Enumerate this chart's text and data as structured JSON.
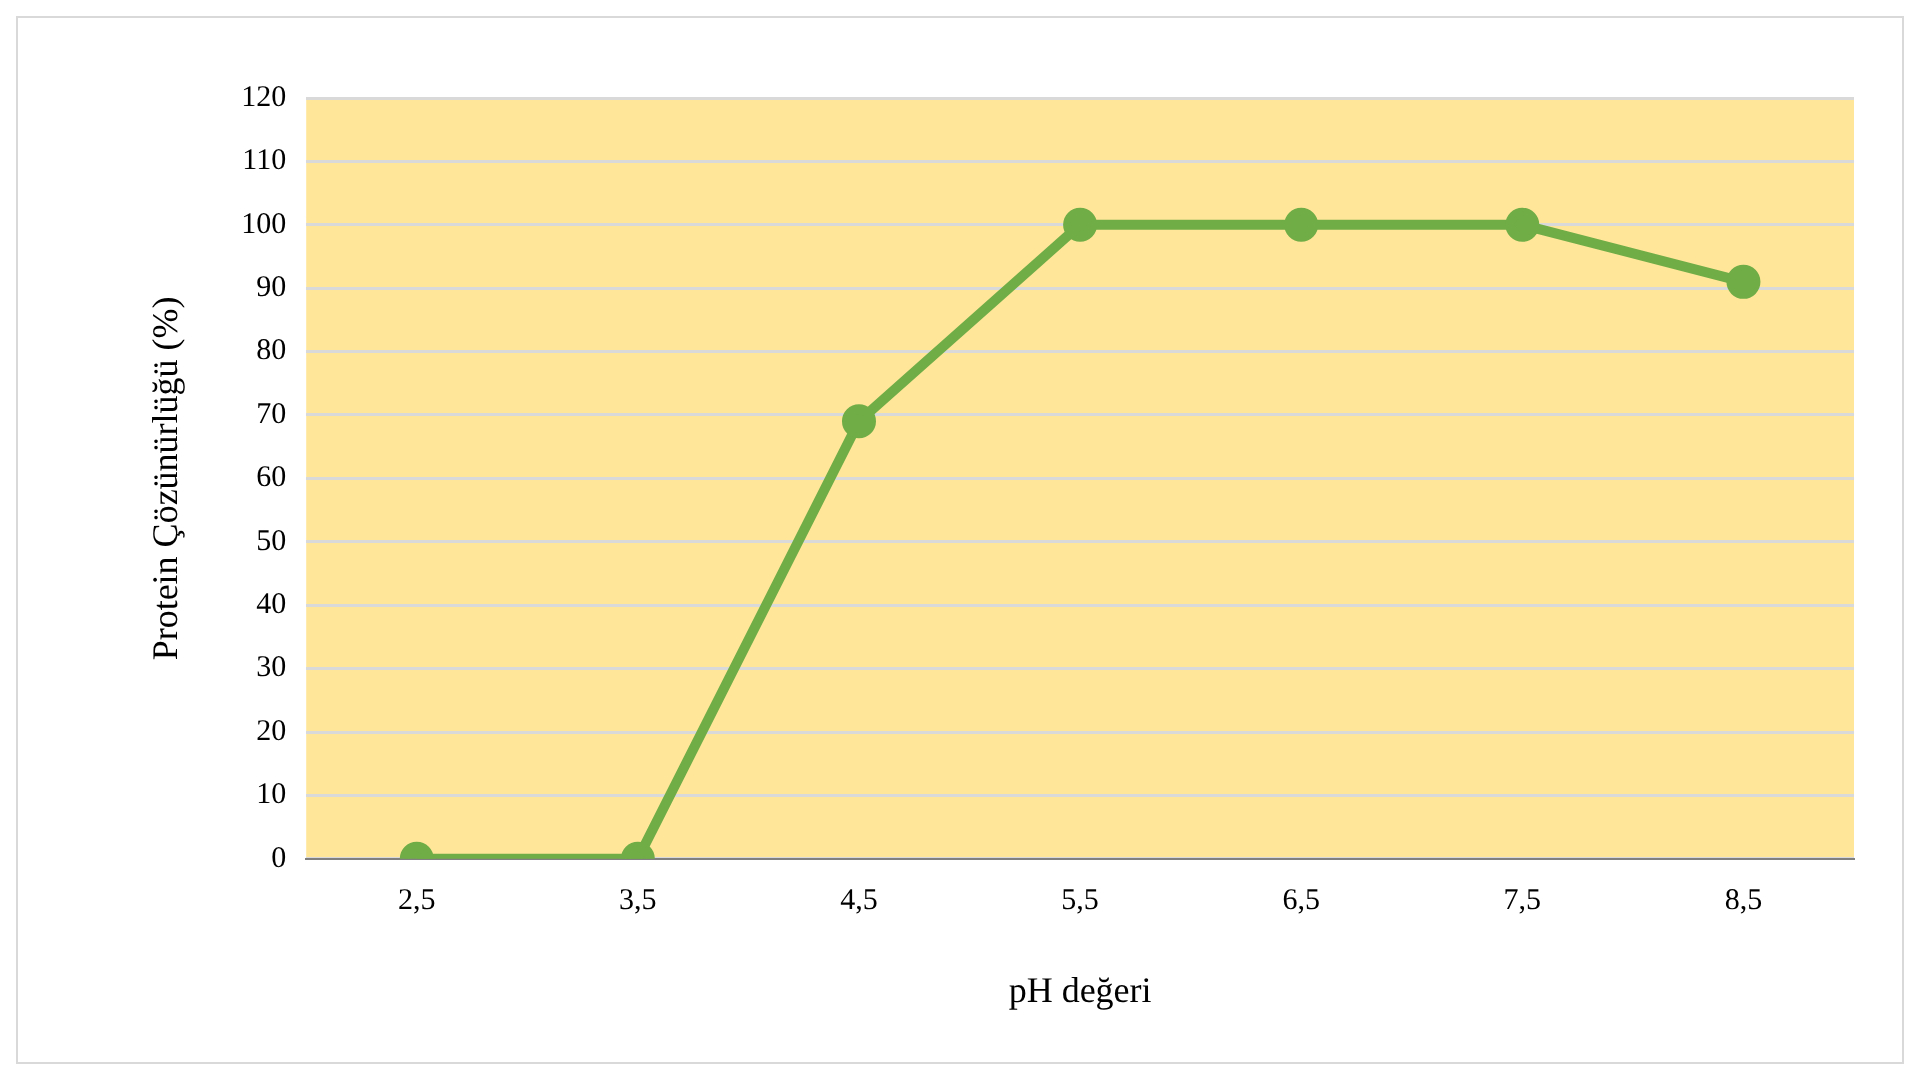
{
  "chart_data": {
    "type": "line",
    "xlabel": "pH değeri",
    "ylabel": "Protein Çözünürlüğü (%)",
    "categories": [
      "2,5",
      "3,5",
      "4,5",
      "5,5",
      "6,5",
      "7,5",
      "8,5"
    ],
    "series": [
      {
        "color": "#70ad47",
        "values": [
          0,
          0,
          69,
          100,
          100,
          100,
          91
        ]
      }
    ],
    "ylim": [
      0,
      120
    ],
    "yticks": [
      0,
      10,
      20,
      30,
      40,
      50,
      60,
      70,
      80,
      90,
      100,
      110,
      120
    ],
    "grid": "y",
    "legend": false,
    "marker": "circle",
    "line_style": "solid"
  }
}
